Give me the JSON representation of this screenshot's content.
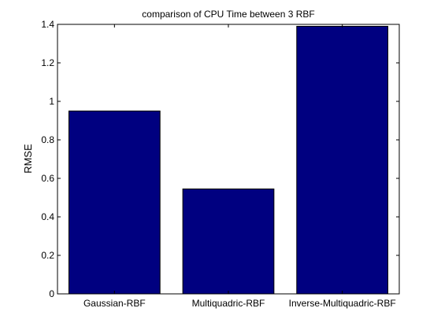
{
  "chart_data": {
    "type": "bar",
    "title": "comparison of CPU Time between 3 RBF",
    "xlabel": "",
    "ylabel": "RMSE",
    "categories": [
      "Gaussian-RBF",
      "Multiquadric-RBF",
      "Inverse-Multiquadric-RBF"
    ],
    "values": [
      0.95,
      0.545,
      1.39
    ],
    "ylim": [
      0,
      1.4
    ],
    "yticks": [
      0,
      0.2,
      0.4,
      0.6,
      0.8,
      1,
      1.2,
      1.4
    ],
    "ytick_labels": [
      "0",
      "0.2",
      "0.4",
      "0.6",
      "0.8",
      "1",
      "1.2",
      "1.4"
    ],
    "bar_color": "#000080",
    "bar_edge_color": "#000000",
    "grid": false,
    "legend": "none"
  }
}
